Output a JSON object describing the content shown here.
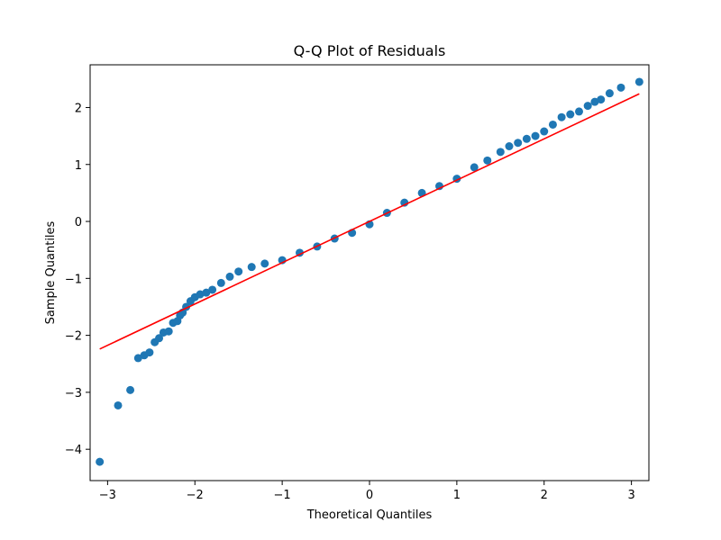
{
  "chart_data": {
    "type": "scatter",
    "title": "Q-Q Plot of Residuals",
    "xlabel": "Theoretical Quantiles",
    "ylabel": "Sample Quantiles",
    "xlim": [
      -3.2,
      3.2
    ],
    "ylim": [
      -4.55,
      2.75
    ],
    "xticks": [
      -3,
      -2,
      -1,
      0,
      1,
      2,
      3
    ],
    "yticks": [
      -4,
      -3,
      -2,
      -1,
      0,
      1,
      2
    ],
    "grid": false,
    "point_color": "#1f77b4",
    "line_color": "#ff0000",
    "reference_line": {
      "x": [
        -3.09,
        3.09
      ],
      "y": [
        -2.24,
        2.24
      ]
    },
    "series": [
      {
        "marker": "circle",
        "x": [
          -3.09,
          -2.88,
          -2.74,
          -2.65,
          -2.58,
          -2.52,
          -2.46,
          -2.41,
          -2.36,
          -2.3,
          -2.25,
          -2.2,
          -2.17,
          -2.14,
          -2.1,
          -2.05,
          -2.0,
          -1.94,
          -1.87,
          -1.8,
          -1.7,
          -1.6,
          -1.5,
          -1.35,
          -1.2,
          -1.0,
          -0.8,
          -0.6,
          -0.4,
          -0.2,
          0.0,
          0.2,
          0.4,
          0.6,
          0.8,
          1.0,
          1.2,
          1.35,
          1.5,
          1.6,
          1.7,
          1.8,
          1.9,
          2.0,
          2.1,
          2.2,
          2.3,
          2.4,
          2.5,
          2.58,
          2.65,
          2.75,
          2.88,
          3.09
        ],
        "y": [
          -4.22,
          -3.23,
          -2.96,
          -2.4,
          -2.35,
          -2.3,
          -2.12,
          -2.05,
          -1.95,
          -1.93,
          -1.78,
          -1.75,
          -1.65,
          -1.6,
          -1.5,
          -1.4,
          -1.33,
          -1.28,
          -1.25,
          -1.2,
          -1.08,
          -0.97,
          -0.88,
          -0.8,
          -0.74,
          -0.68,
          -0.55,
          -0.44,
          -0.3,
          -0.2,
          -0.05,
          0.15,
          0.33,
          0.5,
          0.62,
          0.75,
          0.95,
          1.07,
          1.22,
          1.32,
          1.38,
          1.45,
          1.5,
          1.58,
          1.7,
          1.83,
          1.88,
          1.93,
          2.03,
          2.1,
          2.14,
          2.25,
          2.35,
          2.45
        ]
      }
    ]
  }
}
